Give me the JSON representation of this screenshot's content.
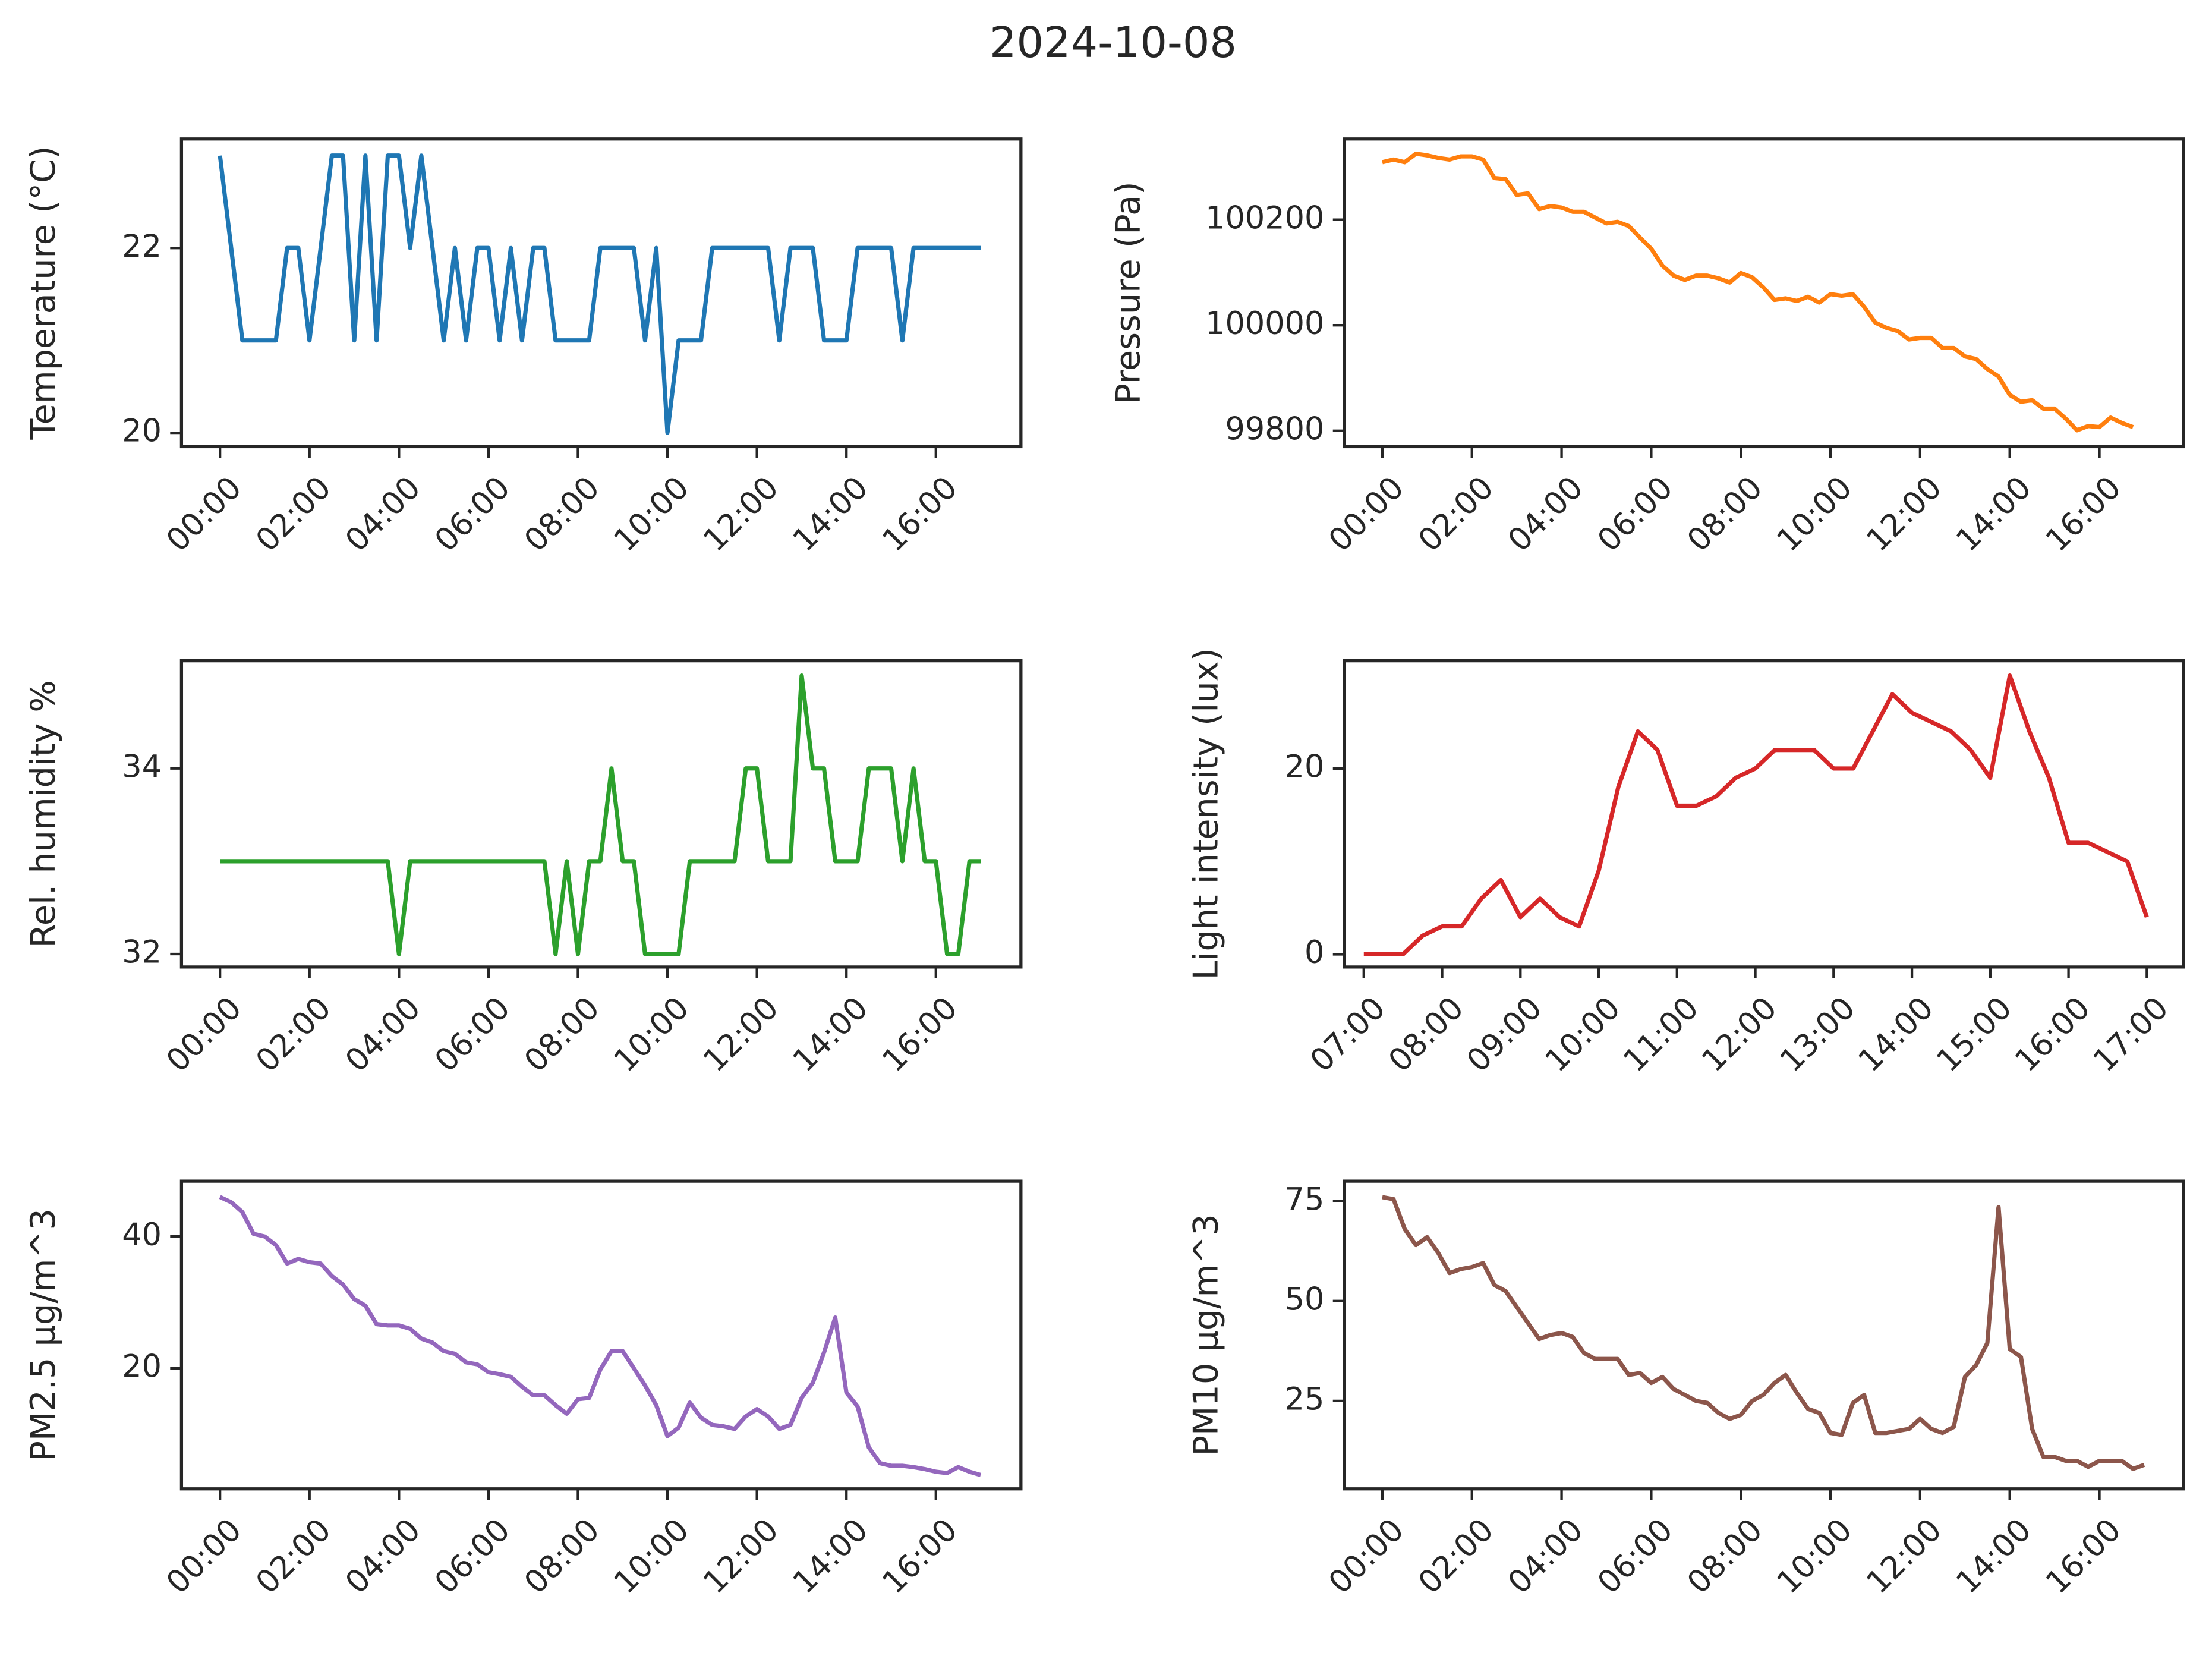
{
  "title": "2024-10-08",
  "chart_data": [
    {
      "type": "line",
      "ylabel": "Temperature (°C)",
      "color": "#1f77b4",
      "x": [
        0,
        0.5,
        1.25,
        1.5,
        1.75,
        2,
        2.5,
        2.75,
        3,
        3.25,
        3.5,
        3.75,
        4,
        4.25,
        4.5,
        5,
        5.25,
        5.5,
        5.75,
        6,
        6.25,
        6.5,
        6.75,
        7,
        7.25,
        7.5,
        8.25,
        8.5,
        9.25,
        9.5,
        9.75,
        10,
        10.25,
        10.75,
        11,
        12.25,
        12.5,
        12.75,
        13.25,
        13.5,
        14,
        14.25,
        15,
        15.25,
        15.5,
        17
      ],
      "values": [
        23,
        21,
        21,
        22,
        22,
        21,
        23,
        23,
        21,
        23,
        21,
        23,
        23,
        22,
        23,
        21,
        22,
        21,
        22,
        22,
        21,
        22,
        21,
        22,
        22,
        21,
        21,
        22,
        22,
        21,
        22,
        20,
        21,
        21,
        22,
        22,
        21,
        22,
        22,
        21,
        21,
        22,
        22,
        21,
        22,
        22
      ],
      "xlim": [
        -0.86,
        17.9
      ],
      "ylim": [
        19.85,
        23.18
      ],
      "yticks": [
        20,
        22
      ],
      "xticks": [
        {
          "value": 0,
          "label": "00:00"
        },
        {
          "value": 2,
          "label": "02:00"
        },
        {
          "value": 4,
          "label": "04:00"
        },
        {
          "value": 6,
          "label": "06:00"
        },
        {
          "value": 8,
          "label": "08:00"
        },
        {
          "value": 10,
          "label": "10:00"
        },
        {
          "value": 12,
          "label": "12:00"
        },
        {
          "value": 14,
          "label": "14:00"
        },
        {
          "value": 16,
          "label": "16:00"
        }
      ]
    },
    {
      "type": "line",
      "ylabel": "Pressure (Pa)",
      "color": "#ff7f0e",
      "x": [
        0,
        0.25,
        0.5,
        0.75,
        1,
        1.25,
        1.5,
        1.75,
        2,
        2.25,
        2.5,
        2.75,
        3,
        3.25,
        3.5,
        3.75,
        4,
        4.25,
        4.5,
        4.75,
        5,
        5.25,
        5.5,
        5.75,
        6,
        6.25,
        6.5,
        6.75,
        7,
        7.25,
        7.5,
        7.75,
        8,
        8.25,
        8.5,
        8.75,
        9,
        9.25,
        9.5,
        9.75,
        10,
        10.25,
        10.5,
        10.75,
        11,
        11.25,
        11.5,
        11.75,
        12,
        12.25,
        12.5,
        12.75,
        13,
        13.25,
        13.5,
        13.75,
        14,
        14.25,
        14.5,
        14.75,
        15,
        15.25,
        15.5,
        15.75,
        16,
        16.25,
        16.5,
        16.75
      ],
      "values": [
        100309,
        100314,
        100309,
        100325,
        100322,
        100317,
        100314,
        100320,
        100320,
        100314,
        100279,
        100277,
        100247,
        100250,
        100220,
        100226,
        100223,
        100215,
        100215,
        100204,
        100193,
        100196,
        100188,
        100166,
        100145,
        100113,
        100094,
        100086,
        100094,
        100094,
        100089,
        100081,
        100099,
        100091,
        100072,
        100048,
        100051,
        100046,
        100054,
        100043,
        100059,
        100056,
        100059,
        100035,
        100005,
        99995,
        99989,
        99973,
        99976,
        99976,
        99957,
        99957,
        99941,
        99936,
        99917,
        99903,
        99868,
        99855,
        99858,
        99842,
        99842,
        99823,
        99801,
        99809,
        99807,
        99825,
        99815,
        99807
      ],
      "xlim": [
        -0.85,
        17.88
      ],
      "ylim": [
        99770,
        100353
      ],
      "yticks": [
        99800,
        100000,
        100200
      ],
      "xticks": [
        {
          "value": 0,
          "label": "00:00"
        },
        {
          "value": 2,
          "label": "02:00"
        },
        {
          "value": 4,
          "label": "04:00"
        },
        {
          "value": 6,
          "label": "06:00"
        },
        {
          "value": 8,
          "label": "08:00"
        },
        {
          "value": 10,
          "label": "10:00"
        },
        {
          "value": 12,
          "label": "12:00"
        },
        {
          "value": 14,
          "label": "14:00"
        },
        {
          "value": 16,
          "label": "16:00"
        }
      ]
    },
    {
      "type": "line",
      "ylabel": "Rel. humidity %",
      "color": "#2ca02c",
      "x": [
        0,
        3.75,
        4,
        4.25,
        7.25,
        7.5,
        7.75,
        8,
        8.25,
        8.5,
        8.75,
        9,
        9.25,
        9.5,
        10.25,
        10.5,
        11.5,
        11.75,
        12,
        12.25,
        12.75,
        13,
        13.25,
        13.5,
        13.75,
        14.25,
        14.5,
        15,
        15.25,
        15.5,
        15.75,
        16,
        16.25,
        16.5,
        16.75,
        17
      ],
      "values": [
        33,
        33,
        32,
        33,
        33,
        32,
        33,
        32,
        33,
        33,
        34,
        33,
        33,
        32,
        32,
        33,
        33,
        34,
        34,
        33,
        33,
        35,
        34,
        34,
        33,
        33,
        34,
        34,
        33,
        34,
        33,
        33,
        32,
        32,
        33,
        33
      ],
      "xlim": [
        -0.86,
        17.9
      ],
      "ylim": [
        31.86,
        35.16
      ],
      "yticks": [
        32,
        34
      ],
      "xticks": [
        {
          "value": 0,
          "label": "00:00"
        },
        {
          "value": 2,
          "label": "02:00"
        },
        {
          "value": 4,
          "label": "04:00"
        },
        {
          "value": 6,
          "label": "06:00"
        },
        {
          "value": 8,
          "label": "08:00"
        },
        {
          "value": 10,
          "label": "10:00"
        },
        {
          "value": 12,
          "label": "12:00"
        },
        {
          "value": 14,
          "label": "14:00"
        },
        {
          "value": 16,
          "label": "16:00"
        }
      ]
    },
    {
      "type": "line",
      "ylabel": "Light intensity (lux)",
      "color": "#d62728",
      "x": [
        7,
        7.5,
        7.75,
        8,
        8.25,
        8.5,
        8.75,
        9,
        9.25,
        9.5,
        9.75,
        10,
        10.25,
        10.5,
        10.75,
        11,
        11.25,
        11.5,
        11.75,
        12,
        12.25,
        12.5,
        12.75,
        13,
        13.25,
        13.5,
        13.75,
        14,
        14.25,
        14.5,
        14.75,
        15,
        15.25,
        15.5,
        15.75,
        16,
        16.25,
        16.5,
        16.75,
        17
      ],
      "values": [
        0,
        0,
        2,
        3,
        3,
        6,
        8,
        4,
        6,
        4,
        3,
        9,
        18,
        24,
        22,
        16,
        16,
        17,
        19,
        20,
        22,
        22,
        22,
        20,
        20,
        24,
        28,
        26,
        25,
        24,
        22,
        19,
        30,
        24,
        19,
        12,
        12,
        11,
        10,
        4
      ],
      "xlim": [
        6.75,
        17.47
      ],
      "ylim": [
        -1.37,
        31.6
      ],
      "yticks": [
        0,
        20
      ],
      "xticks": [
        {
          "value": 7,
          "label": "07:00"
        },
        {
          "value": 8,
          "label": "08:00"
        },
        {
          "value": 9,
          "label": "09:00"
        },
        {
          "value": 10,
          "label": "10:00"
        },
        {
          "value": 11,
          "label": "11:00"
        },
        {
          "value": 12,
          "label": "12:00"
        },
        {
          "value": 13,
          "label": "13:00"
        },
        {
          "value": 14,
          "label": "14:00"
        },
        {
          "value": 15,
          "label": "15:00"
        },
        {
          "value": 16,
          "label": "16:00"
        },
        {
          "value": 17,
          "label": "17:00"
        }
      ]
    },
    {
      "type": "line",
      "ylabel": "PM2.5 µg/m^3",
      "color": "#9467bd",
      "x": [
        0,
        0.25,
        0.5,
        0.75,
        1,
        1.25,
        1.5,
        1.75,
        2,
        2.25,
        2.5,
        2.75,
        3,
        3.25,
        3.5,
        3.75,
        4,
        4.25,
        4.5,
        4.75,
        5,
        5.25,
        5.5,
        5.75,
        6,
        6.25,
        6.5,
        6.75,
        7,
        7.25,
        7.5,
        7.75,
        8,
        8.25,
        8.5,
        8.75,
        9,
        9.25,
        9.5,
        9.75,
        10,
        10.25,
        10.5,
        10.75,
        11,
        11.25,
        11.5,
        11.75,
        12,
        12.25,
        12.5,
        12.75,
        13,
        13.25,
        13.5,
        13.75,
        14,
        14.25,
        14.5,
        14.75,
        15,
        15.25,
        15.5,
        15.75,
        16,
        16.25,
        16.5,
        16.75,
        17
      ],
      "values": [
        46.0,
        45.2,
        43.7,
        40.4,
        40.0,
        38.7,
        35.9,
        36.6,
        36.1,
        35.9,
        34.0,
        32.7,
        30.5,
        29.5,
        26.7,
        26.5,
        26.5,
        26.0,
        24.5,
        23.9,
        22.6,
        22.2,
        20.9,
        20.6,
        19.4,
        19.1,
        18.7,
        17.2,
        15.9,
        15.9,
        14.4,
        13.1,
        15.3,
        15.5,
        19.8,
        22.6,
        22.6,
        20.0,
        17.4,
        14.4,
        9.7,
        11.0,
        14.8,
        12.5,
        11.4,
        11.2,
        10.8,
        12.7,
        13.8,
        12.7,
        10.8,
        11.4,
        15.5,
        17.8,
        22.4,
        27.7,
        16.3,
        14.2,
        8.0,
        5.6,
        5.2,
        5.2,
        5.0,
        4.7,
        4.3,
        4.1,
        5.0,
        4.3,
        3.8
      ],
      "xlim": [
        -0.86,
        17.9
      ],
      "ylim": [
        1.7,
        48.4
      ],
      "yticks": [
        20,
        40
      ],
      "xticks": [
        {
          "value": 0,
          "label": "00:00"
        },
        {
          "value": 2,
          "label": "02:00"
        },
        {
          "value": 4,
          "label": "04:00"
        },
        {
          "value": 6,
          "label": "06:00"
        },
        {
          "value": 8,
          "label": "08:00"
        },
        {
          "value": 10,
          "label": "10:00"
        },
        {
          "value": 12,
          "label": "12:00"
        },
        {
          "value": 14,
          "label": "14:00"
        },
        {
          "value": 16,
          "label": "16:00"
        }
      ]
    },
    {
      "type": "line",
      "ylabel": "PM10 µg/m^3",
      "color": "#8c564b",
      "x": [
        0,
        0.25,
        0.5,
        0.75,
        1,
        1.25,
        1.5,
        1.75,
        2,
        2.25,
        2.5,
        2.75,
        3,
        3.25,
        3.5,
        3.75,
        4,
        4.25,
        4.5,
        4.75,
        5,
        5.25,
        5.5,
        5.75,
        6,
        6.25,
        6.5,
        6.75,
        7,
        7.25,
        7.5,
        7.75,
        8,
        8.25,
        8.5,
        8.75,
        9,
        9.25,
        9.5,
        9.75,
        10,
        10.25,
        10.5,
        10.75,
        11,
        11.25,
        11.5,
        11.75,
        12,
        12.25,
        12.5,
        12.75,
        13,
        13.25,
        13.5,
        13.75,
        14,
        14.25,
        14.5,
        14.75,
        15,
        15.25,
        15.5,
        15.75,
        16,
        16.25,
        16.5,
        16.75,
        17
      ],
      "values": [
        76,
        75.5,
        68,
        64,
        66,
        62,
        57,
        58,
        58.5,
        59.5,
        54,
        52.5,
        48.5,
        44.5,
        40.5,
        41.5,
        42,
        41,
        37,
        35.5,
        35.5,
        35.5,
        31.5,
        32,
        29.5,
        31,
        28,
        26.5,
        25,
        24.5,
        22,
        20.5,
        21.5,
        25,
        26.5,
        29.5,
        31.5,
        27,
        23,
        22,
        17,
        16.5,
        24.5,
        26.5,
        17,
        17,
        17.5,
        18,
        20.5,
        18,
        17,
        18.5,
        31,
        34,
        39.5,
        73.5,
        38,
        36,
        18,
        11,
        11,
        10,
        10,
        8.5,
        10,
        10,
        10,
        8,
        9
      ],
      "xlim": [
        -0.85,
        17.88
      ],
      "ylim": [
        3,
        80
      ],
      "yticks": [
        25,
        50,
        75
      ],
      "xticks": [
        {
          "value": 0,
          "label": "00:00"
        },
        {
          "value": 2,
          "label": "02:00"
        },
        {
          "value": 4,
          "label": "04:00"
        },
        {
          "value": 6,
          "label": "06:00"
        },
        {
          "value": 8,
          "label": "08:00"
        },
        {
          "value": 10,
          "label": "10:00"
        },
        {
          "value": 12,
          "label": "12:00"
        },
        {
          "value": 14,
          "label": "14:00"
        },
        {
          "value": 16,
          "label": "16:00"
        }
      ]
    }
  ]
}
